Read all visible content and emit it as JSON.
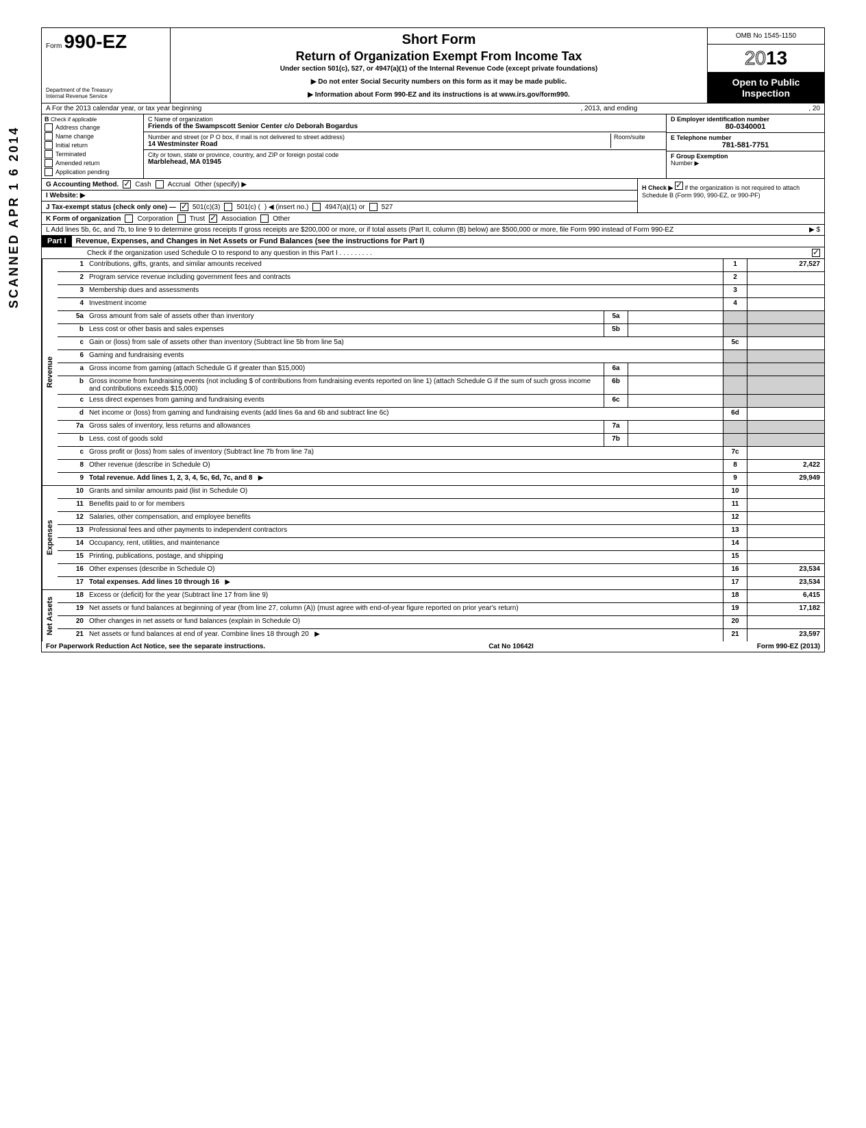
{
  "header": {
    "form_label": "Form",
    "form_number": "990-EZ",
    "dept1": "Department of the Treasury",
    "dept2": "Internal Revenue Service",
    "title1": "Short Form",
    "title2": "Return of Organization Exempt From Income Tax",
    "subtitle": "Under section 501(c), 527, or 4947(a)(1) of the Internal Revenue Code (except private foundations)",
    "note1": "▶ Do not enter Social Security numbers on this form as it may be made public.",
    "note2": "▶ Information about Form 990-EZ and its instructions is at www.irs.gov/form990.",
    "omb": "OMB No 1545-1150",
    "year_outline": "20",
    "year_bold": "13",
    "open_public": "Open to Public Inspection"
  },
  "row_a": {
    "label": "A For the 2013 calendar year, or tax year beginning",
    "mid": ", 2013, and ending",
    "end": ", 20"
  },
  "section_b": {
    "label": "B",
    "sublabel": "Check if applicable",
    "opts": [
      "Address change",
      "Name change",
      "Initial return",
      "Terminated",
      "Amended return",
      "Application pending"
    ]
  },
  "section_c": {
    "label_c": "C Name of organization",
    "org_name": "Friends of the Swampscott Senior Center c/o Deborah Bogardus",
    "label_addr": "Number and street (or P O  box, if mail is not delivered to street address)",
    "room": "Room/suite",
    "street": "14 Westminster Road",
    "label_city": "City or town, state or province, country, and ZIP or foreign postal code",
    "city": "Marblehead, MA 01945"
  },
  "section_right": {
    "d_label": "D Employer identification number",
    "d_val": "80-0340001",
    "e_label": "E Telephone number",
    "e_val": "781-581-7751",
    "f_label": "F Group Exemption",
    "f_label2": "Number ▶"
  },
  "line_g": {
    "label": "G Accounting Method.",
    "cash": "Cash",
    "accrual": "Accrual",
    "other": "Other (specify) ▶"
  },
  "line_h": {
    "label": "H Check ▶",
    "text": "if the organization is not required to attach Schedule B (Form 990, 990-EZ, or 990-PF)"
  },
  "line_i": "I  Website: ▶",
  "line_j": {
    "label": "J Tax-exempt status (check only one) —",
    "o1": "501(c)(3)",
    "o2": "501(c) (",
    "o2b": ") ◀ (insert no.)",
    "o3": "4947(a)(1) or",
    "o4": "527"
  },
  "line_k": {
    "label": "K Form of organization",
    "o1": "Corporation",
    "o2": "Trust",
    "o3": "Association",
    "o4": "Other"
  },
  "line_l": "L Add lines 5b, 6c, and 7b, to line 9 to determine gross receipts  If gross receipts are $200,000 or more, or if total assets (Part II, column (B) below) are $500,000 or more, file Form 990 instead of Form 990-EZ",
  "line_l_arrow": "▶  $",
  "part1": {
    "label": "Part I",
    "title": "Revenue, Expenses, and Changes in Net Assets or Fund Balances (see the instructions for Part I)",
    "check_line": "Check if the organization used Schedule O to respond to any question in this Part I  .  .  .  .  .  .  .  .  ."
  },
  "sections": {
    "revenue": "Revenue",
    "expenses": "Expenses",
    "netassets": "Net Assets"
  },
  "lines": {
    "1": {
      "n": "1",
      "d": "Contributions, gifts, grants, and similar amounts received",
      "rn": "1",
      "rv": "27,527"
    },
    "2": {
      "n": "2",
      "d": "Program service revenue including government fees and contracts",
      "rn": "2",
      "rv": ""
    },
    "3": {
      "n": "3",
      "d": "Membership dues and assessments",
      "rn": "3",
      "rv": ""
    },
    "4": {
      "n": "4",
      "d": "Investment income",
      "rn": "4",
      "rv": ""
    },
    "5a": {
      "n": "5a",
      "d": "Gross amount from sale of assets other than inventory",
      "mn": "5a",
      "mv": ""
    },
    "5b": {
      "n": "b",
      "d": "Less  cost or other basis and sales expenses",
      "mn": "5b",
      "mv": ""
    },
    "5c": {
      "n": "c",
      "d": "Gain or (loss) from sale of assets other than inventory (Subtract line 5b from line 5a)",
      "rn": "5c",
      "rv": ""
    },
    "6": {
      "n": "6",
      "d": "Gaming and fundraising events"
    },
    "6a": {
      "n": "a",
      "d": "Gross income from gaming (attach Schedule G if greater than $15,000)",
      "mn": "6a",
      "mv": ""
    },
    "6b": {
      "n": "b",
      "d": "Gross income from fundraising events (not including $                     of contributions from fundraising events reported on line 1) (attach Schedule G if the sum of such gross income and contributions exceeds $15,000)",
      "mn": "6b",
      "mv": ""
    },
    "6c": {
      "n": "c",
      "d": "Less  direct expenses from gaming and fundraising events",
      "mn": "6c",
      "mv": ""
    },
    "6d": {
      "n": "d",
      "d": "Net income or (loss) from gaming and fundraising events (add lines 6a and 6b and subtract line 6c)",
      "rn": "6d",
      "rv": ""
    },
    "7a": {
      "n": "7a",
      "d": "Gross sales of inventory, less returns and allowances",
      "mn": "7a",
      "mv": ""
    },
    "7b": {
      "n": "b",
      "d": "Less. cost of goods sold",
      "mn": "7b",
      "mv": ""
    },
    "7c": {
      "n": "c",
      "d": "Gross profit or (loss) from sales of inventory (Subtract line 7b from line 7a)",
      "rn": "7c",
      "rv": ""
    },
    "8": {
      "n": "8",
      "d": "Other revenue (describe in Schedule O)",
      "rn": "8",
      "rv": "2,422"
    },
    "9": {
      "n": "9",
      "d": "Total revenue. Add lines 1, 2, 3, 4, 5c, 6d, 7c, and 8",
      "rn": "9",
      "rv": "29,949",
      "bold": true,
      "arrow": "▶"
    },
    "10": {
      "n": "10",
      "d": "Grants and similar amounts paid (list in Schedule O)",
      "rn": "10",
      "rv": ""
    },
    "11": {
      "n": "11",
      "d": "Benefits paid to or for members",
      "rn": "11",
      "rv": ""
    },
    "12": {
      "n": "12",
      "d": "Salaries, other compensation, and employee benefits",
      "rn": "12",
      "rv": ""
    },
    "13": {
      "n": "13",
      "d": "Professional fees and other payments to independent contractors",
      "rn": "13",
      "rv": ""
    },
    "14": {
      "n": "14",
      "d": "Occupancy, rent, utilities, and maintenance",
      "rn": "14",
      "rv": ""
    },
    "15": {
      "n": "15",
      "d": "Printing, publications, postage, and shipping",
      "rn": "15",
      "rv": ""
    },
    "16": {
      "n": "16",
      "d": "Other expenses (describe in Schedule O)",
      "rn": "16",
      "rv": "23,534"
    },
    "17": {
      "n": "17",
      "d": "Total expenses. Add lines 10 through 16",
      "rn": "17",
      "rv": "23,534",
      "bold": true,
      "arrow": "▶"
    },
    "18": {
      "n": "18",
      "d": "Excess or (deficit) for the year (Subtract line 17 from line 9)",
      "rn": "18",
      "rv": "6,415"
    },
    "19": {
      "n": "19",
      "d": "Net assets or fund balances at beginning of year (from line 27, column (A)) (must agree with end-of-year figure reported on prior year's return)",
      "rn": "19",
      "rv": "17,182"
    },
    "20": {
      "n": "20",
      "d": "Other changes in net assets or fund balances (explain in Schedule O)",
      "rn": "20",
      "rv": ""
    },
    "21": {
      "n": "21",
      "d": "Net assets or fund balances at end of year. Combine lines 18 through 20",
      "rn": "21",
      "rv": "23,597",
      "arrow": "▶"
    }
  },
  "footer": {
    "left": "For Paperwork Reduction Act Notice, see the separate instructions.",
    "mid": "Cat No 10642I",
    "right": "Form 990-EZ (2013)"
  },
  "stamp": "SCANNED APR 1 6 2014"
}
